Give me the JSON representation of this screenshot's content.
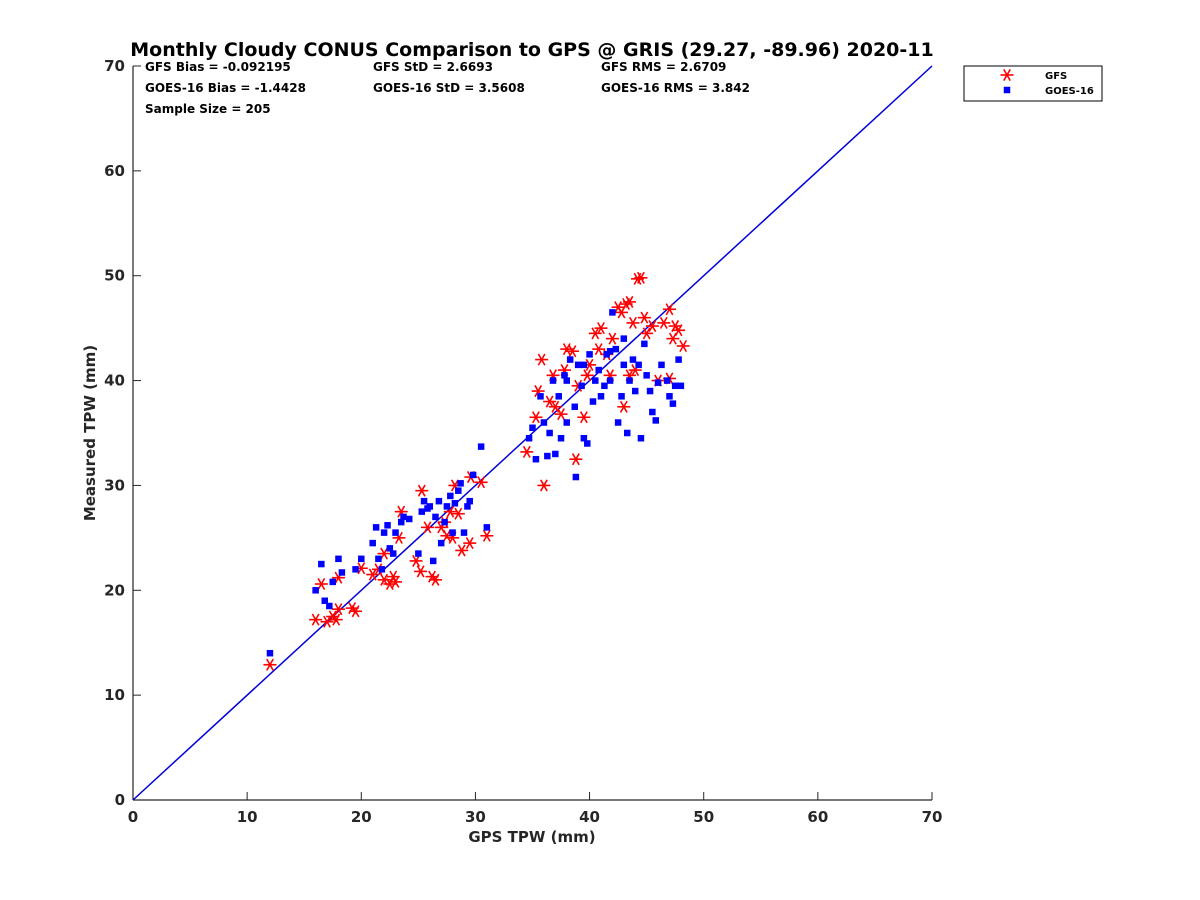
{
  "chart_data": {
    "type": "scatter",
    "title": "Monthly Cloudy CONUS Comparison to GPS @ GRIS (29.27, -89.96) 2020-11",
    "xlabel": "GPS TPW (mm)",
    "ylabel": "Measured TPW (mm)",
    "xlim": [
      0,
      70
    ],
    "ylim": [
      0,
      70
    ],
    "xticks": [
      0,
      10,
      20,
      30,
      40,
      50,
      60,
      70
    ],
    "yticks": [
      0,
      10,
      20,
      30,
      40,
      50,
      60,
      70
    ],
    "grid": false,
    "legend_position": "outside-top-right",
    "stats": [
      [
        "GFS Bias = -0.092195",
        "GFS StD = 2.6693",
        "GFS RMS = 2.6709"
      ],
      [
        "GOES-16 Bias = -1.4428",
        "GOES-16 StD = 3.5608",
        "GOES-16 RMS = 3.842"
      ],
      [
        "Sample Size = 205"
      ]
    ],
    "reference_line": {
      "x": [
        0,
        70
      ],
      "y": [
        0,
        70
      ],
      "color": "#0000dd"
    },
    "series": [
      {
        "name": "GFS",
        "marker": "asterisk",
        "color": "#ff0000",
        "points": [
          [
            12.0,
            12.9
          ],
          [
            16.0,
            17.2
          ],
          [
            16.5,
            20.6
          ],
          [
            17.0,
            17.0
          ],
          [
            17.5,
            17.5
          ],
          [
            17.8,
            17.2
          ],
          [
            18.0,
            18.2
          ],
          [
            19.2,
            18.3
          ],
          [
            19.5,
            18.0
          ],
          [
            18.0,
            21.2
          ],
          [
            20.0,
            22.1
          ],
          [
            21.0,
            21.5
          ],
          [
            21.5,
            22.0
          ],
          [
            22.0,
            21.0
          ],
          [
            22.5,
            20.6
          ],
          [
            22.8,
            21.3
          ],
          [
            23.0,
            20.8
          ],
          [
            22.0,
            23.5
          ],
          [
            23.5,
            27.5
          ],
          [
            23.3,
            25.0
          ],
          [
            24.8,
            22.8
          ],
          [
            25.2,
            21.8
          ],
          [
            25.3,
            29.5
          ],
          [
            25.8,
            26.0
          ],
          [
            26.2,
            21.3
          ],
          [
            26.5,
            21.0
          ],
          [
            27.0,
            26.0
          ],
          [
            27.3,
            26.5
          ],
          [
            27.5,
            25.2
          ],
          [
            27.8,
            27.5
          ],
          [
            28.2,
            30.0
          ],
          [
            28.5,
            27.3
          ],
          [
            28.0,
            25.0
          ],
          [
            28.8,
            23.8
          ],
          [
            29.5,
            24.5
          ],
          [
            29.6,
            30.8
          ],
          [
            30.5,
            30.3
          ],
          [
            31.0,
            25.2
          ],
          [
            34.5,
            33.2
          ],
          [
            35.3,
            36.5
          ],
          [
            35.5,
            39.0
          ],
          [
            35.8,
            42.0
          ],
          [
            36.0,
            30.0
          ],
          [
            36.5,
            38.0
          ],
          [
            36.8,
            40.5
          ],
          [
            37.0,
            37.5
          ],
          [
            37.5,
            36.8
          ],
          [
            37.8,
            41.0
          ],
          [
            38.0,
            43.0
          ],
          [
            38.5,
            42.8
          ],
          [
            38.8,
            32.5
          ],
          [
            39.0,
            39.5
          ],
          [
            39.5,
            36.5
          ],
          [
            39.8,
            40.5
          ],
          [
            40.0,
            41.5
          ],
          [
            40.5,
            44.5
          ],
          [
            40.8,
            43.0
          ],
          [
            41.0,
            45.0
          ],
          [
            41.5,
            42.5
          ],
          [
            41.8,
            40.5
          ],
          [
            42.0,
            44.0
          ],
          [
            42.5,
            47.0
          ],
          [
            42.8,
            46.5
          ],
          [
            43.0,
            37.5
          ],
          [
            43.2,
            47.3
          ],
          [
            43.5,
            47.5
          ],
          [
            43.8,
            45.5
          ],
          [
            44.0,
            41.0
          ],
          [
            44.2,
            49.7
          ],
          [
            44.5,
            49.8
          ],
          [
            44.8,
            46.0
          ],
          [
            45.0,
            44.5
          ],
          [
            45.5,
            45.2
          ],
          [
            46.0,
            40.0
          ],
          [
            46.5,
            45.5
          ],
          [
            47.0,
            46.8
          ],
          [
            47.3,
            44.0
          ],
          [
            47.5,
            45.2
          ],
          [
            47.8,
            44.8
          ],
          [
            48.2,
            43.3
          ],
          [
            47.0,
            40.2
          ],
          [
            43.5,
            40.5
          ]
        ]
      },
      {
        "name": "GOES-16",
        "marker": "square",
        "color": "#0000ff",
        "points": [
          [
            12.0,
            14.0
          ],
          [
            16.0,
            20.0
          ],
          [
            16.5,
            22.5
          ],
          [
            16.8,
            19.0
          ],
          [
            17.2,
            18.5
          ],
          [
            17.5,
            20.8
          ],
          [
            18.0,
            23.0
          ],
          [
            18.3,
            21.7
          ],
          [
            19.5,
            22.0
          ],
          [
            20.0,
            23.0
          ],
          [
            21.0,
            24.5
          ],
          [
            21.3,
            26.0
          ],
          [
            21.5,
            23.0
          ],
          [
            21.8,
            22.0
          ],
          [
            22.0,
            25.5
          ],
          [
            22.3,
            26.2
          ],
          [
            22.5,
            24.0
          ],
          [
            22.8,
            23.5
          ],
          [
            23.0,
            25.5
          ],
          [
            23.5,
            26.5
          ],
          [
            23.7,
            27.0
          ],
          [
            24.2,
            26.8
          ],
          [
            25.0,
            23.5
          ],
          [
            25.3,
            27.5
          ],
          [
            25.5,
            28.5
          ],
          [
            25.8,
            27.8
          ],
          [
            26.0,
            28.0
          ],
          [
            26.3,
            22.8
          ],
          [
            26.5,
            27.0
          ],
          [
            26.8,
            28.5
          ],
          [
            27.0,
            24.5
          ],
          [
            27.3,
            26.5
          ],
          [
            27.5,
            28.0
          ],
          [
            27.8,
            29.0
          ],
          [
            28.0,
            25.5
          ],
          [
            28.2,
            28.3
          ],
          [
            28.5,
            29.5
          ],
          [
            28.7,
            30.2
          ],
          [
            29.0,
            25.5
          ],
          [
            29.3,
            28.0
          ],
          [
            29.5,
            28.5
          ],
          [
            29.8,
            31.0
          ],
          [
            30.5,
            33.7
          ],
          [
            31.0,
            26.0
          ],
          [
            34.7,
            34.5
          ],
          [
            35.0,
            35.5
          ],
          [
            35.3,
            32.5
          ],
          [
            35.7,
            38.5
          ],
          [
            36.0,
            36.0
          ],
          [
            36.3,
            32.8
          ],
          [
            36.5,
            35.0
          ],
          [
            36.8,
            40.0
          ],
          [
            37.0,
            33.0
          ],
          [
            37.3,
            38.5
          ],
          [
            37.5,
            34.5
          ],
          [
            37.8,
            40.5
          ],
          [
            38.0,
            36.0
          ],
          [
            38.3,
            42.0
          ],
          [
            38.7,
            37.5
          ],
          [
            38.8,
            30.8
          ],
          [
            39.0,
            41.5
          ],
          [
            39.3,
            39.5
          ],
          [
            39.5,
            34.5
          ],
          [
            39.8,
            34.0
          ],
          [
            40.0,
            42.5
          ],
          [
            40.3,
            38.0
          ],
          [
            40.5,
            40.0
          ],
          [
            40.8,
            41.0
          ],
          [
            41.0,
            38.5
          ],
          [
            41.3,
            39.5
          ],
          [
            41.5,
            42.5
          ],
          [
            41.8,
            40.0
          ],
          [
            42.0,
            46.5
          ],
          [
            42.3,
            43.0
          ],
          [
            42.5,
            36.0
          ],
          [
            42.8,
            38.5
          ],
          [
            43.0,
            41.5
          ],
          [
            43.3,
            35.0
          ],
          [
            43.5,
            40.0
          ],
          [
            43.8,
            42.0
          ],
          [
            44.0,
            39.0
          ],
          [
            44.3,
            41.5
          ],
          [
            44.5,
            34.5
          ],
          [
            44.8,
            43.5
          ],
          [
            45.0,
            40.5
          ],
          [
            45.3,
            39.0
          ],
          [
            45.5,
            37.0
          ],
          [
            45.8,
            36.2
          ],
          [
            46.0,
            39.8
          ],
          [
            46.3,
            41.5
          ],
          [
            46.8,
            40.0
          ],
          [
            47.0,
            38.5
          ],
          [
            47.3,
            37.8
          ],
          [
            47.5,
            39.5
          ],
          [
            47.8,
            42.0
          ],
          [
            48.0,
            39.5
          ],
          [
            41.8,
            42.8
          ],
          [
            43.0,
            44.0
          ],
          [
            39.5,
            41.5
          ],
          [
            38.0,
            40.0
          ]
        ]
      }
    ]
  }
}
